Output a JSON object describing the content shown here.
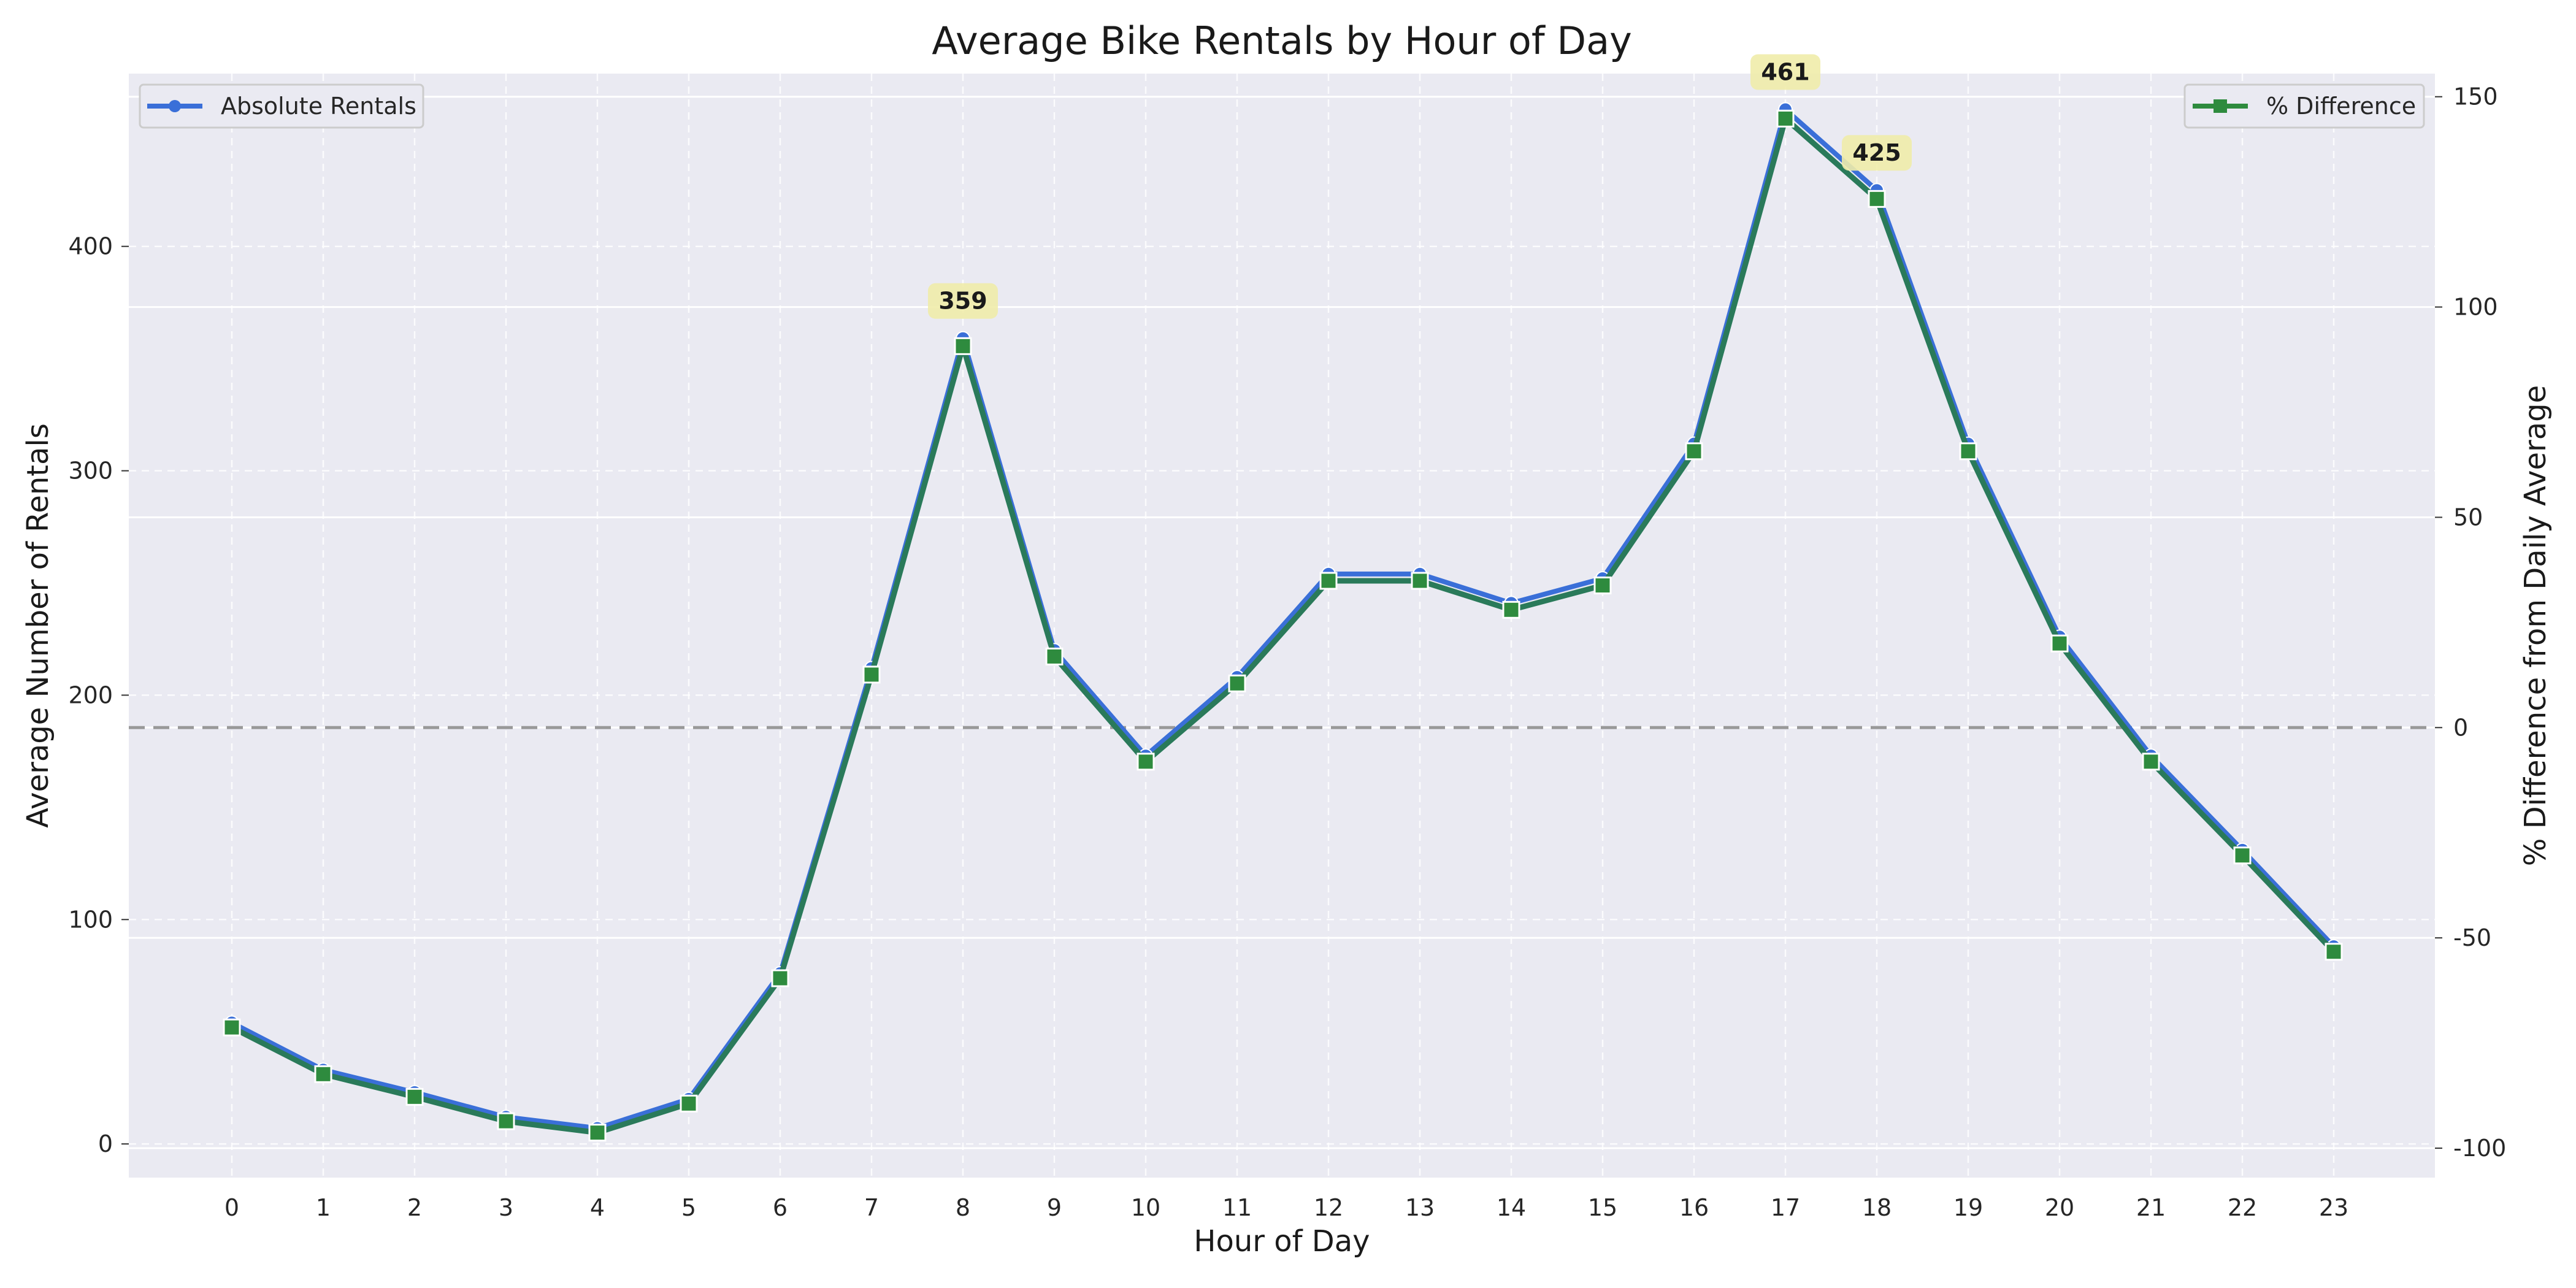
{
  "chart_data": {
    "type": "line",
    "title": "Average Bike Rentals by Hour of Day",
    "xlabel": "Hour of Day",
    "ylabel": "Average Number of Rentals",
    "ylabel_right": "% Difference from Daily Average",
    "categories": [
      "0",
      "1",
      "2",
      "3",
      "4",
      "5",
      "6",
      "7",
      "8",
      "9",
      "10",
      "11",
      "12",
      "13",
      "14",
      "15",
      "16",
      "17",
      "18",
      "19",
      "20",
      "21",
      "22",
      "23"
    ],
    "ylim": [
      -15,
      477
    ],
    "y2lim": [
      -107,
      155.5
    ],
    "yticks": [
      0,
      100,
      200,
      300,
      400
    ],
    "y2ticks": [
      -100,
      -50,
      0,
      50,
      100,
      150
    ],
    "grid": true,
    "reference_line": {
      "axis": "right",
      "value": 0,
      "style": "dashed",
      "color": "#999999"
    },
    "series": [
      {
        "name": "Absolute Rentals",
        "axis": "left",
        "color": "#3a6fd8",
        "marker": "circle",
        "values": [
          54,
          33,
          23,
          12,
          7,
          20,
          76,
          212,
          359,
          220,
          173,
          208,
          254,
          254,
          241,
          252,
          312,
          461,
          425,
          312,
          226,
          173,
          131,
          88
        ]
      },
      {
        "name": "% Difference",
        "axis": "right",
        "color": "#2e8b3e",
        "marker": "square",
        "values": [
          -71.3,
          -82.4,
          -87.8,
          -93.6,
          -96.3,
          -89.4,
          -59.6,
          12.6,
          90.7,
          16.9,
          -8.1,
          10.5,
          34.9,
          34.9,
          28.0,
          33.8,
          65.7,
          144.8,
          125.7,
          65.7,
          20.0,
          -8.1,
          -30.4,
          -53.3
        ]
      }
    ],
    "annotations": [
      {
        "x": "8",
        "text": "359"
      },
      {
        "x": "17",
        "text": "461"
      },
      {
        "x": "18",
        "text": "425"
      }
    ],
    "legend_left": {
      "placement": "top-left",
      "entries": [
        "Absolute Rentals"
      ]
    },
    "legend_right": {
      "placement": "top-right",
      "entries": [
        "% Difference"
      ]
    },
    "colors": {
      "plot_bg": "#eaeaf2",
      "grid": "#ffffff",
      "absolute_line": "#3a6fd8",
      "diff_line": "#2e8b3e",
      "overlap_line": "#2a7a5a",
      "annotation_bg": "#f0ecaa"
    }
  }
}
